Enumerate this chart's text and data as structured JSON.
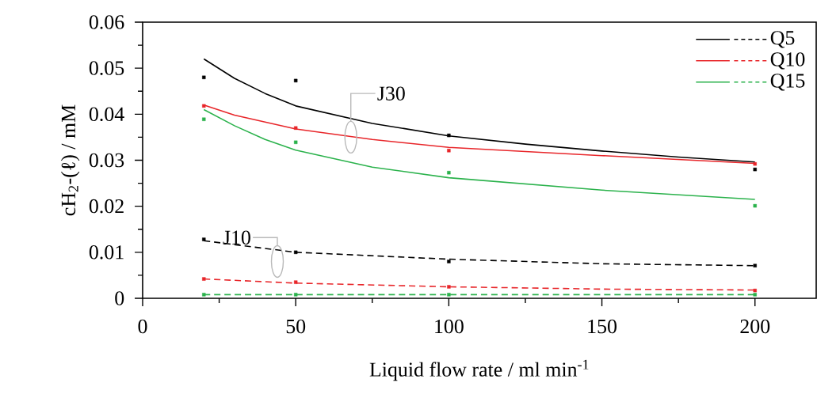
{
  "chart_data": {
    "type": "line",
    "xlabel": "Liquid flow rate / ml min$^{-1}$",
    "ylabel": "cH$_{2}$-(ℓ) / mM",
    "xlim": [
      0,
      220
    ],
    "ylim": [
      0,
      0.06
    ],
    "xticks": [
      0,
      50,
      100,
      150,
      200
    ],
    "yticks": [
      0,
      0.01,
      0.02,
      0.03,
      0.04,
      0.05,
      0.06
    ],
    "grid": false,
    "legend": "top right",
    "annotations": [
      {
        "text": "J30",
        "x": 68,
        "y": 0.035
      },
      {
        "text": "J10",
        "x": 44,
        "y": 0.008
      }
    ],
    "series": [
      {
        "color": "#000000",
        "line_style": "solid",
        "marker": "none",
        "x": [
          20,
          30,
          40,
          50,
          75,
          100,
          125,
          150,
          175,
          200
        ],
        "values": [
          0.052,
          0.0478,
          0.0445,
          0.0418,
          0.038,
          0.0353,
          0.0335,
          0.032,
          0.0307,
          0.0296
        ]
      },
      {
        "color": "#e8262a",
        "line_style": "solid",
        "marker": "none",
        "x": [
          20,
          30,
          50,
          75,
          100,
          150,
          200
        ],
        "values": [
          0.042,
          0.0398,
          0.0368,
          0.0345,
          0.0328,
          0.031,
          0.0293
        ]
      },
      {
        "color": "#2bb24c",
        "line_style": "solid",
        "marker": "none",
        "x": [
          20,
          30,
          40,
          50,
          75,
          100,
          150,
          200
        ],
        "values": [
          0.041,
          0.0375,
          0.0345,
          0.0322,
          0.0285,
          0.0262,
          0.0235,
          0.0215
        ]
      },
      {
        "name": "Q5",
        "type": "line",
        "color": "#000000",
        "line_style": "dashed",
        "marker": "none",
        "x": [
          20,
          50,
          100,
          150,
          200
        ],
        "values": [
          0.0125,
          0.01,
          0.0085,
          0.0075,
          0.0071
        ]
      },
      {
        "name": "Q10",
        "type": "line",
        "color": "#e8262a",
        "line_style": "dashed",
        "marker": "none",
        "x": [
          20,
          50,
          100,
          150,
          200
        ],
        "values": [
          0.0042,
          0.0033,
          0.0025,
          0.002,
          0.0018
        ]
      },
      {
        "name": "Q15",
        "type": "line",
        "color": "#2bb24c",
        "line_style": "dashed",
        "marker": "none",
        "x": [
          20,
          50,
          100,
          150,
          200
        ],
        "values": [
          0.0008,
          0.0008,
          0.0008,
          0.0008,
          0.0008
        ]
      },
      {
        "type": "scatter",
        "color": "#000000",
        "marker": "square",
        "x": [
          20,
          50,
          100,
          200
        ],
        "values": [
          0.048,
          0.0473,
          0.0354,
          0.028
        ]
      },
      {
        "type": "scatter",
        "color": "#e8262a",
        "marker": "square",
        "x": [
          20,
          50,
          100,
          200
        ],
        "values": [
          0.0418,
          0.037,
          0.0321,
          0.0292
        ]
      },
      {
        "type": "scatter",
        "color": "#2bb24c",
        "marker": "square",
        "x": [
          20,
          50,
          100,
          200
        ],
        "values": [
          0.0389,
          0.0339,
          0.0273,
          0.0201
        ]
      },
      {
        "type": "scatter",
        "color": "#000000",
        "marker": "square",
        "x": [
          20,
          50,
          100,
          200
        ],
        "values": [
          0.0128,
          0.01,
          0.008,
          0.0071
        ]
      },
      {
        "type": "scatter",
        "color": "#e8262a",
        "marker": "square",
        "x": [
          20,
          50,
          100,
          200
        ],
        "values": [
          0.0042,
          0.0035,
          0.0025,
          0.0017
        ]
      },
      {
        "type": "scatter",
        "color": "#2bb24c",
        "marker": "square",
        "x": [
          20,
          50,
          100,
          200
        ],
        "values": [
          0.0008,
          0.0008,
          0.0008,
          0.0008
        ]
      }
    ]
  }
}
